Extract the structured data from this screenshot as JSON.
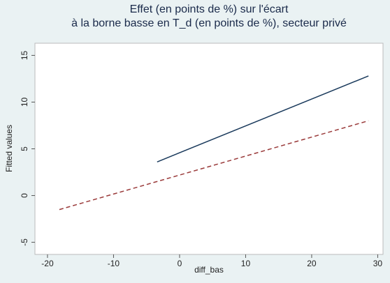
{
  "chart_data": {
    "type": "line",
    "title": [
      "Effet (en points de %) sur l'écart",
      "à la borne basse en T_d (en points de %), secteur privé"
    ],
    "xlabel": "diff_bas",
    "ylabel": "Fitted values",
    "series": [
      {
        "color": "#1a3a5c",
        "dash": "solid",
        "x": [
          -3.4,
          28.6
        ],
        "values": [
          3.6,
          12.8
        ]
      },
      {
        "color": "#9a3a3a",
        "dash": "dashed",
        "x": [
          -18.2,
          28.6
        ],
        "values": [
          -1.5,
          8.0
        ]
      }
    ],
    "xlim": [
      -21.9,
      30.8
    ],
    "xticks": [
      -20,
      -10,
      0,
      10,
      20,
      30
    ],
    "ylim": [
      -6.3,
      16.3
    ],
    "yticks": [
      -5,
      0,
      5,
      10,
      15
    ]
  }
}
